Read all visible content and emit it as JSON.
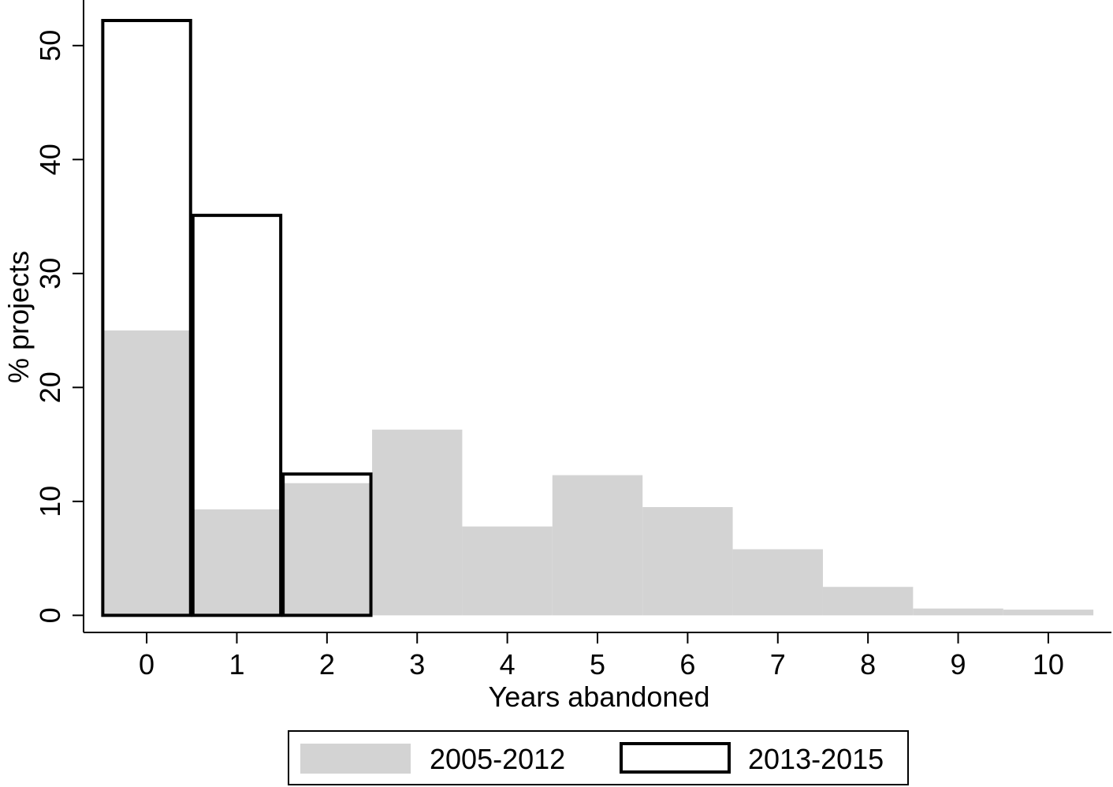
{
  "chart_data": {
    "type": "bar",
    "subtype": "histogram-overlay",
    "xlabel": "Years abandoned",
    "ylabel": "% projects",
    "x": [
      0,
      1,
      2,
      3,
      4,
      5,
      6,
      7,
      8,
      9,
      10
    ],
    "x_tick_labels": [
      "0",
      "1",
      "2",
      "3",
      "4",
      "5",
      "6",
      "7",
      "8",
      "9",
      "10"
    ],
    "y_ticks": [
      0,
      10,
      20,
      30,
      40,
      50
    ],
    "y_tick_labels": [
      "0",
      "10",
      "20",
      "30",
      "40",
      "50"
    ],
    "xlim": [
      -0.7,
      10.7
    ],
    "ylim": [
      -1.5,
      54
    ],
    "grid": false,
    "legend": {
      "position": "bottom-center",
      "entries": [
        "2005-2012",
        "2013-2015"
      ]
    },
    "series": [
      {
        "name": "2005-2012",
        "style": "filled",
        "color": "#d3d3d3",
        "x": [
          0,
          1,
          2,
          3,
          4,
          5,
          6,
          7,
          8,
          9,
          10
        ],
        "values": [
          25.0,
          9.3,
          11.6,
          16.3,
          7.8,
          12.3,
          9.5,
          5.8,
          2.5,
          0.6,
          0.5
        ]
      },
      {
        "name": "2013-2015",
        "style": "outline",
        "color": "#000000",
        "x": [
          0,
          1,
          2
        ],
        "values": [
          52.2,
          35.1,
          12.4
        ]
      }
    ]
  }
}
